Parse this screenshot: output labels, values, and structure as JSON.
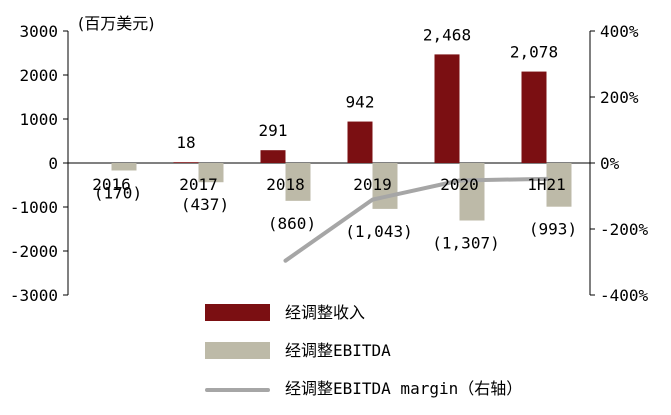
{
  "unit_label": "(百万美元)",
  "colors": {
    "revenue": "#7b0f12",
    "ebitda": "#bdbaa8",
    "margin": "#a6a6a6",
    "axis": "#000000"
  },
  "chart_data": {
    "type": "bar",
    "categories": [
      "2016",
      "2017",
      "2018",
      "2019",
      "2020",
      "1H21"
    ],
    "ylim": [
      -3000,
      3000
    ],
    "yticks": [
      3000,
      2000,
      1000,
      0,
      -1000,
      -2000,
      -3000
    ],
    "ytick_labels": [
      "3000",
      "2000",
      "1000",
      "0",
      "-1000",
      "-2000",
      "-3000"
    ],
    "y2lim": [
      -400,
      400
    ],
    "y2ticks": [
      400,
      200,
      0,
      -200,
      -400
    ],
    "y2tick_labels": [
      "400%",
      "200%",
      "0%",
      "-200%",
      "-400%"
    ],
    "series": [
      {
        "name": "经调整收入",
        "type": "bar",
        "values": [
          null,
          18,
          291,
          942,
          2468,
          2078
        ],
        "labels": [
          "",
          "18",
          "291",
          "942",
          "2,468",
          "2,078"
        ]
      },
      {
        "name": "经调整EBITDA",
        "type": "bar",
        "values": [
          -170,
          -437,
          -860,
          -1043,
          -1307,
          -993
        ],
        "labels": [
          "(170)",
          "(437)",
          "(860)",
          "(1,043)",
          "(1,307)",
          "(993)"
        ]
      },
      {
        "name": "经调整EBITDA margin（右轴）",
        "type": "line",
        "axis": "right",
        "values": [
          null,
          null,
          -296,
          -111,
          -53,
          -48
        ]
      }
    ]
  }
}
